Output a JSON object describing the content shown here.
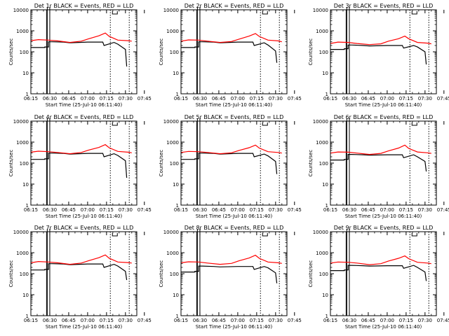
{
  "chart_data": [
    {
      "type": "line",
      "title": "Det 1r BLACK = Events, RED = LLD",
      "xlabel": "Start Time (25-Jul-10 06:11:40)",
      "ylabel": "Counts/sec",
      "yscale": "log",
      "ylim": [
        1,
        10000
      ],
      "xticks": [
        "06:15",
        "06:30",
        "06:45",
        "07:00",
        "07:15",
        "07:30",
        "07:45"
      ],
      "yticks": [
        "1",
        "10",
        "100",
        "1000",
        "10000"
      ],
      "series": [
        {
          "color": "#000000",
          "x": [
            0,
            11,
            11,
            14,
            14,
            17,
            26,
            31,
            45,
            57,
            58,
            66,
            69,
            75,
            76
          ],
          "y": [
            160,
            160,
            170,
            170,
            300,
            300,
            290,
            270,
            290,
            290,
            200,
            280,
            230,
            130,
            20
          ]
        },
        {
          "color": "#ff0000",
          "x": [
            0,
            6,
            14,
            21,
            31,
            40,
            46,
            54,
            59,
            62,
            69,
            77,
            80
          ],
          "y": [
            340,
            380,
            360,
            330,
            280,
            320,
            420,
            580,
            780,
            550,
            360,
            340,
            320
          ]
        }
      ],
      "vlines": {
        "solid": [
          13,
          15
        ],
        "dotted": [
          63,
          78
        ]
      }
    },
    {
      "type": "line",
      "title": "Det 2r BLACK = Events, RED = LLD",
      "xlabel": "Start Time (25-Jul-10 06:11:40)",
      "ylabel": "Counts/sec",
      "yscale": "log",
      "ylim": [
        1,
        10000
      ],
      "xticks": [
        "06:15",
        "06:30",
        "06:45",
        "07:00",
        "07:15",
        "07:30",
        "07:45"
      ],
      "yticks": [
        "1",
        "10",
        "100",
        "1000",
        "10000"
      ],
      "series": [
        {
          "color": "#000000",
          "x": [
            0,
            11,
            11,
            14,
            14,
            17,
            26,
            31,
            45,
            57,
            58,
            66,
            69,
            75,
            76
          ],
          "y": [
            160,
            160,
            170,
            170,
            300,
            300,
            290,
            270,
            290,
            290,
            200,
            270,
            210,
            110,
            30
          ]
        },
        {
          "color": "#ff0000",
          "x": [
            0,
            6,
            14,
            21,
            31,
            40,
            46,
            54,
            59,
            62,
            69,
            77,
            80
          ],
          "y": [
            320,
            370,
            360,
            320,
            280,
            310,
            400,
            560,
            740,
            540,
            360,
            330,
            300
          ]
        }
      ],
      "vlines": {
        "solid": [
          13,
          15
        ],
        "dotted": [
          63,
          78
        ]
      }
    },
    {
      "type": "line",
      "title": "Det 3r BLACK = Events, RED = LLD",
      "xlabel": "Start Time (25-Jul-10 06:11:40)",
      "ylabel": "Counts/sec",
      "yscale": "log",
      "ylim": [
        1,
        10000
      ],
      "xticks": [
        "06:15",
        "06:30",
        "06:45",
        "07:00",
        "07:15",
        "07:30",
        "07:45"
      ],
      "yticks": [
        "1",
        "10",
        "100",
        "1000",
        "10000"
      ],
      "series": [
        {
          "color": "#000000",
          "x": [
            0,
            11,
            11,
            14,
            14,
            17,
            26,
            31,
            45,
            57,
            58,
            66,
            69,
            75,
            76
          ],
          "y": [
            130,
            130,
            140,
            140,
            210,
            210,
            200,
            190,
            200,
            200,
            150,
            200,
            170,
            100,
            25
          ]
        },
        {
          "color": "#ff0000",
          "x": [
            0,
            6,
            14,
            21,
            31,
            40,
            46,
            54,
            59,
            62,
            69,
            77,
            80
          ],
          "y": [
            250,
            290,
            280,
            250,
            220,
            240,
            320,
            420,
            560,
            420,
            280,
            260,
            240
          ]
        }
      ],
      "vlines": {
        "solid": [
          13,
          15
        ],
        "dotted": [
          63,
          78
        ]
      }
    },
    {
      "type": "line",
      "title": "Det 4r BLACK = Events, RED = LLD",
      "xlabel": "Start Time (25-Jul-10 06:11:40)",
      "ylabel": "Counts/sec",
      "yscale": "log",
      "ylim": [
        1,
        10000
      ],
      "xticks": [
        "06:15",
        "06:30",
        "06:45",
        "07:00",
        "07:15",
        "07:30",
        "07:45"
      ],
      "yticks": [
        "1",
        "10",
        "100",
        "1000",
        "10000"
      ],
      "series": [
        {
          "color": "#000000",
          "x": [
            0,
            11,
            11,
            14,
            14,
            17,
            26,
            31,
            45,
            57,
            58,
            66,
            69,
            75,
            76
          ],
          "y": [
            150,
            150,
            160,
            160,
            300,
            300,
            290,
            270,
            290,
            290,
            200,
            280,
            230,
            130,
            20
          ]
        },
        {
          "color": "#ff0000",
          "x": [
            0,
            6,
            14,
            21,
            31,
            40,
            46,
            54,
            59,
            62,
            69,
            77,
            80
          ],
          "y": [
            330,
            370,
            350,
            320,
            280,
            320,
            420,
            560,
            760,
            540,
            360,
            330,
            310
          ]
        }
      ],
      "vlines": {
        "solid": [
          13,
          15
        ],
        "dotted": [
          63,
          78
        ]
      }
    },
    {
      "type": "line",
      "title": "Det 5r BLACK = Events, RED = LLD",
      "xlabel": "Start Time (25-Jul-10 06:11:40)",
      "ylabel": "Counts/sec",
      "yscale": "log",
      "ylim": [
        1,
        10000
      ],
      "xticks": [
        "06:15",
        "06:30",
        "06:45",
        "07:00",
        "07:15",
        "07:30",
        "07:45"
      ],
      "yticks": [
        "1",
        "10",
        "100",
        "1000",
        "10000"
      ],
      "series": [
        {
          "color": "#000000",
          "x": [
            0,
            11,
            11,
            14,
            14,
            17,
            26,
            31,
            45,
            57,
            58,
            66,
            69,
            75,
            76
          ],
          "y": [
            150,
            150,
            160,
            160,
            300,
            300,
            290,
            270,
            290,
            290,
            200,
            270,
            220,
            120,
            30
          ]
        },
        {
          "color": "#ff0000",
          "x": [
            0,
            6,
            14,
            21,
            31,
            40,
            46,
            54,
            59,
            62,
            69,
            77,
            80
          ],
          "y": [
            320,
            360,
            350,
            320,
            280,
            310,
            400,
            540,
            720,
            520,
            350,
            320,
            300
          ]
        }
      ],
      "vlines": {
        "solid": [
          13,
          15
        ],
        "dotted": [
          63,
          78
        ]
      }
    },
    {
      "type": "line",
      "title": "Det 6r BLACK = Events, RED = LLD",
      "xlabel": "Start Time (25-Jul-10 06:11:40)",
      "ylabel": "Counts/sec",
      "yscale": "log",
      "ylim": [
        1,
        10000
      ],
      "xticks": [
        "06:15",
        "06:30",
        "06:45",
        "07:00",
        "07:15",
        "07:30",
        "07:45"
      ],
      "yticks": [
        "1",
        "10",
        "100",
        "1000",
        "10000"
      ],
      "series": [
        {
          "color": "#000000",
          "x": [
            0,
            11,
            11,
            14,
            14,
            17,
            26,
            31,
            45,
            57,
            58,
            66,
            69,
            75,
            76
          ],
          "y": [
            140,
            140,
            150,
            150,
            260,
            260,
            250,
            240,
            250,
            250,
            180,
            250,
            200,
            120,
            40
          ]
        },
        {
          "color": "#ff0000",
          "x": [
            0,
            6,
            14,
            21,
            31,
            40,
            46,
            54,
            59,
            62,
            69,
            77,
            80
          ],
          "y": [
            300,
            340,
            330,
            300,
            260,
            290,
            380,
            520,
            720,
            500,
            340,
            310,
            290
          ]
        }
      ],
      "vlines": {
        "solid": [
          13,
          15
        ],
        "dotted": [
          63,
          78
        ]
      }
    },
    {
      "type": "line",
      "title": "Det 7r BLACK = Events, RED = LLD",
      "xlabel": "Start Time (25-Jul-10 06:11:40)",
      "ylabel": "Counts/sec",
      "yscale": "log",
      "ylim": [
        1,
        10000
      ],
      "xticks": [
        "06:15",
        "06:30",
        "06:45",
        "07:00",
        "07:15",
        "07:30",
        "07:45"
      ],
      "yticks": [
        "1",
        "10",
        "100",
        "1000",
        "10000"
      ],
      "series": [
        {
          "color": "#000000",
          "x": [
            0,
            11,
            11,
            14,
            14,
            17,
            26,
            31,
            45,
            57,
            58,
            66,
            69,
            75,
            76
          ],
          "y": [
            150,
            150,
            160,
            160,
            300,
            300,
            290,
            270,
            290,
            290,
            200,
            280,
            230,
            130,
            50
          ]
        },
        {
          "color": "#ff0000",
          "x": [
            0,
            6,
            14,
            21,
            31,
            40,
            46,
            54,
            59,
            62,
            69,
            77,
            80
          ],
          "y": [
            330,
            380,
            360,
            330,
            280,
            320,
            420,
            580,
            780,
            550,
            360,
            340,
            320
          ]
        }
      ],
      "vlines": {
        "solid": [
          13,
          15
        ],
        "dotted": [
          63,
          78
        ]
      }
    },
    {
      "type": "line",
      "title": "Det 8r BLACK = Events, RED = LLD",
      "xlabel": "Start Time (25-Jul-10 06:11:40)",
      "ylabel": "Counts/sec",
      "yscale": "log",
      "ylim": [
        1,
        10000
      ],
      "xticks": [
        "06:15",
        "06:30",
        "06:45",
        "07:00",
        "07:15",
        "07:30",
        "07:45"
      ],
      "yticks": [
        "1",
        "10",
        "100",
        "1000",
        "10000"
      ],
      "series": [
        {
          "color": "#000000",
          "x": [
            0,
            11,
            11,
            14,
            14,
            17,
            26,
            31,
            45,
            57,
            58,
            66,
            69,
            75,
            76
          ],
          "y": [
            120,
            120,
            130,
            130,
            230,
            230,
            220,
            210,
            220,
            220,
            160,
            220,
            190,
            110,
            35
          ]
        },
        {
          "color": "#ff0000",
          "x": [
            0,
            6,
            14,
            21,
            31,
            40,
            46,
            54,
            59,
            62,
            69,
            77,
            80
          ],
          "y": [
            330,
            370,
            360,
            320,
            280,
            310,
            410,
            560,
            760,
            540,
            360,
            330,
            310
          ]
        }
      ],
      "vlines": {
        "solid": [
          13,
          15
        ],
        "dotted": [
          63,
          78
        ]
      }
    },
    {
      "type": "line",
      "title": "Det 9r BLACK = Events, RED = LLD",
      "xlabel": "Start Time (25-Jul-10 06:11:40)",
      "ylabel": "Counts/sec",
      "yscale": "log",
      "ylim": [
        1,
        10000
      ],
      "xticks": [
        "06:15",
        "06:30",
        "06:45",
        "07:00",
        "07:15",
        "07:30",
        "07:45"
      ],
      "yticks": [
        "1",
        "10",
        "100",
        "1000",
        "10000"
      ],
      "series": [
        {
          "color": "#000000",
          "x": [
            0,
            11,
            11,
            14,
            14,
            17,
            26,
            31,
            45,
            57,
            58,
            66,
            69,
            75,
            76
          ],
          "y": [
            140,
            140,
            150,
            150,
            250,
            250,
            240,
            230,
            240,
            240,
            180,
            250,
            200,
            120,
            45
          ]
        },
        {
          "color": "#ff0000",
          "x": [
            0,
            6,
            14,
            21,
            31,
            40,
            46,
            54,
            59,
            62,
            69,
            77,
            80
          ],
          "y": [
            320,
            360,
            350,
            320,
            270,
            300,
            400,
            540,
            700,
            520,
            350,
            320,
            300
          ]
        }
      ],
      "vlines": {
        "solid": [
          13,
          15
        ],
        "dotted": [
          63,
          78
        ]
      }
    }
  ]
}
